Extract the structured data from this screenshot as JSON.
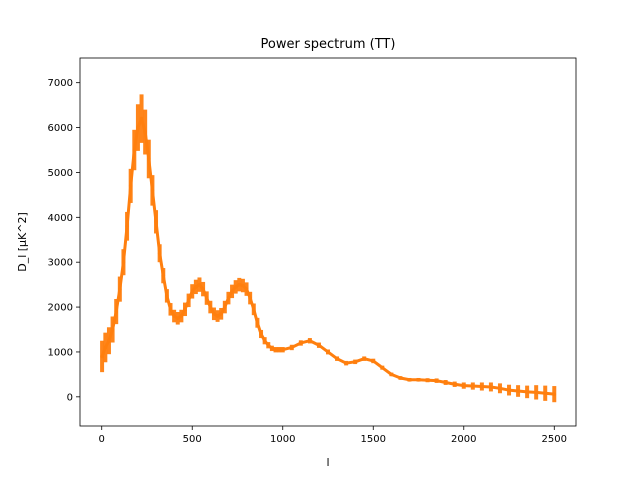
{
  "chart_data": {
    "type": "line",
    "title": "Power spectrum (TT)",
    "xlabel": "l",
    "ylabel": "D_l [μK^2]",
    "xlim": [
      -120,
      2620
    ],
    "ylim": [
      -650,
      7550
    ],
    "xticks": [
      0,
      500,
      1000,
      1500,
      2000,
      2500
    ],
    "yticks": [
      0,
      1000,
      2000,
      3000,
      4000,
      5000,
      6000,
      7000
    ],
    "grid": false,
    "legend": "none",
    "colors": {
      "series": "#ff7f0e",
      "errorbar": "#ff7f0e",
      "axis": "#000000"
    },
    "series": [
      {
        "x": [
          2,
          20,
          40,
          60,
          80,
          100,
          120,
          140,
          160,
          180,
          200,
          220,
          240,
          260,
          280,
          300,
          320,
          340,
          360,
          380,
          400,
          420,
          440,
          460,
          480,
          500,
          520,
          540,
          560,
          580,
          600,
          620,
          640,
          660,
          680,
          700,
          720,
          740,
          760,
          780,
          800,
          820,
          840,
          860,
          880,
          900,
          920,
          940,
          960,
          980,
          1000,
          1050,
          1100,
          1150,
          1200,
          1250,
          1300,
          1350,
          1400,
          1450,
          1500,
          1550,
          1600,
          1650,
          1700,
          1750,
          1800,
          1850,
          1900,
          1950,
          2000,
          2050,
          2100,
          2150,
          2200,
          2250,
          2300,
          2350,
          2400,
          2450,
          2500
        ],
        "y": [
          900,
          1100,
          1250,
          1500,
          1900,
          2400,
          3000,
          3800,
          4700,
          5500,
          6000,
          6200,
          5900,
          5300,
          4600,
          3900,
          3200,
          2700,
          2250,
          1950,
          1800,
          1750,
          1800,
          1950,
          2150,
          2350,
          2450,
          2500,
          2400,
          2200,
          2000,
          1850,
          1800,
          1850,
          2000,
          2200,
          2350,
          2450,
          2500,
          2480,
          2400,
          2200,
          1950,
          1650,
          1400,
          1250,
          1150,
          1080,
          1050,
          1050,
          1050,
          1100,
          1200,
          1250,
          1150,
          1000,
          850,
          750,
          780,
          850,
          800,
          650,
          500,
          420,
          380,
          380,
          370,
          360,
          320,
          280,
          250,
          240,
          230,
          220,
          190,
          150,
          130,
          110,
          100,
          80,
          60
        ],
        "err": [
          350,
          330,
          300,
          290,
          280,
          280,
          290,
          320,
          380,
          450,
          520,
          540,
          500,
          430,
          340,
          260,
          200,
          170,
          150,
          140,
          140,
          140,
          140,
          150,
          150,
          160,
          160,
          160,
          160,
          150,
          140,
          140,
          130,
          130,
          140,
          140,
          150,
          150,
          150,
          150,
          150,
          140,
          130,
          110,
          90,
          80,
          70,
          60,
          60,
          60,
          60,
          60,
          60,
          60,
          60,
          55,
          50,
          50,
          50,
          50,
          50,
          45,
          40,
          40,
          40,
          40,
          45,
          50,
          55,
          60,
          70,
          80,
          90,
          100,
          110,
          120,
          130,
          140,
          160,
          170,
          180
        ]
      }
    ]
  }
}
